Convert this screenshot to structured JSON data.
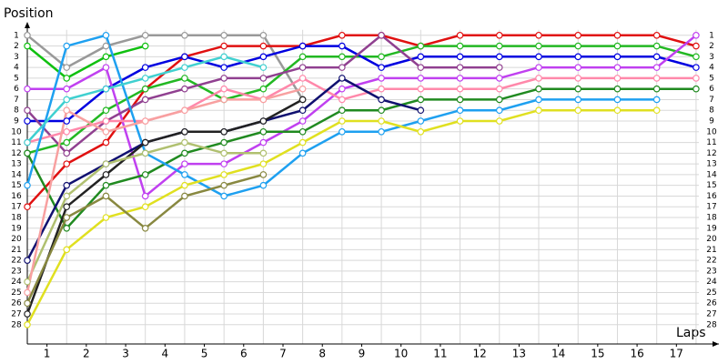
{
  "chart_data": {
    "type": "line",
    "y_label": "Position",
    "x_label": "Laps",
    "x": [
      0,
      1,
      2,
      3,
      4,
      5,
      6,
      7,
      8,
      9,
      10,
      11,
      12,
      13,
      14,
      15,
      16,
      17
    ],
    "xlim": [
      0,
      17.58
    ],
    "ylim": [
      29.8,
      0
    ],
    "xticks": [
      {
        "value": 0.5,
        "label": "1"
      },
      {
        "value": 1.5,
        "label": "2"
      },
      {
        "value": 2.5,
        "label": "3"
      },
      {
        "value": 3.5,
        "label": "4"
      },
      {
        "value": 4.5,
        "label": "5"
      },
      {
        "value": 5.5,
        "label": "6"
      },
      {
        "value": 6.5,
        "label": "7"
      },
      {
        "value": 7.5,
        "label": "8"
      },
      {
        "value": 8.5,
        "label": "9"
      },
      {
        "value": 9.5,
        "label": "10"
      },
      {
        "value": 10.5,
        "label": "11"
      },
      {
        "value": 11.5,
        "label": "12"
      },
      {
        "value": 12.5,
        "label": "13"
      },
      {
        "value": 13.5,
        "label": "14"
      },
      {
        "value": 14.5,
        "label": "15"
      },
      {
        "value": 15.5,
        "label": "16"
      },
      {
        "value": 16.5,
        "label": "17"
      }
    ],
    "yticks": [
      1,
      2,
      3,
      4,
      5,
      6,
      7,
      8,
      9,
      10,
      11,
      12,
      13,
      14,
      15,
      16,
      17,
      18,
      19,
      20,
      21,
      22,
      23,
      24,
      25,
      26,
      27,
      28
    ],
    "grid": true,
    "series": [
      {
        "color": "#999999",
        "values": [
          1,
          4,
          2,
          1,
          1,
          1,
          1,
          7,
          null,
          null,
          null,
          null,
          null,
          null,
          null,
          null,
          null,
          null
        ]
      },
      {
        "color": "#e01010",
        "values": [
          17,
          13,
          11,
          6,
          3,
          2,
          2,
          2,
          1,
          1,
          2,
          1,
          1,
          1,
          1,
          1,
          1,
          2
        ]
      },
      {
        "color": "#10c010",
        "values": [
          2,
          5,
          3,
          2,
          null,
          null,
          null,
          null,
          null,
          null,
          null,
          null,
          null,
          null,
          null,
          null,
          null,
          null
        ]
      },
      {
        "color": "#22b822",
        "values": [
          12,
          11,
          8,
          6,
          5,
          7,
          6,
          3,
          3,
          3,
          2,
          2,
          2,
          2,
          2,
          2,
          2,
          3
        ]
      },
      {
        "color": "#0000e0",
        "values": [
          9,
          9,
          6,
          4,
          3,
          4,
          3,
          2,
          2,
          4,
          3,
          3,
          3,
          3,
          3,
          3,
          3,
          4
        ]
      },
      {
        "color": "#c040f0",
        "values": [
          6,
          6,
          4,
          16,
          13,
          13,
          11,
          9,
          6,
          5,
          5,
          5,
          5,
          4,
          4,
          4,
          4,
          1
        ]
      },
      {
        "color": "#904090",
        "values": [
          8,
          12,
          9,
          7,
          6,
          5,
          5,
          4,
          4,
          1,
          4,
          4,
          4,
          null,
          null,
          null,
          null,
          null
        ]
      },
      {
        "color": "#ff88aa",
        "values": [
          11,
          10,
          9,
          9,
          8,
          6,
          7,
          5,
          7,
          6,
          6,
          6,
          6,
          5,
          5,
          5,
          5,
          5
        ]
      },
      {
        "color": "#208a20",
        "values": [
          12,
          19,
          15,
          14,
          12,
          11,
          10,
          10,
          8,
          8,
          7,
          7,
          7,
          6,
          6,
          6,
          6,
          6
        ]
      },
      {
        "color": "#1ea0f0",
        "values": [
          15,
          2,
          1,
          12,
          14,
          16,
          15,
          12,
          10,
          10,
          9,
          8,
          8,
          7,
          7,
          7,
          7,
          null
        ]
      },
      {
        "color": "#e0e020",
        "values": [
          28,
          21,
          18,
          17,
          15,
          14,
          13,
          11,
          9,
          9,
          10,
          9,
          9,
          8,
          8,
          8,
          8,
          null
        ]
      },
      {
        "color": "#40d0d0",
        "values": [
          11,
          7,
          6,
          5,
          4,
          3,
          4,
          null,
          null,
          null,
          null,
          null,
          null,
          null,
          null,
          null,
          null,
          null
        ]
      },
      {
        "color": "#101070",
        "values": [
          22,
          15,
          13,
          11,
          10,
          10,
          9,
          8,
          5,
          7,
          8,
          null,
          null,
          null,
          null,
          null,
          null,
          null
        ]
      },
      {
        "color": "#222222",
        "values": [
          27,
          17,
          14,
          11,
          10,
          10,
          9,
          7,
          null,
          null,
          null,
          null,
          null,
          null,
          null,
          null,
          null,
          null
        ]
      },
      {
        "color": "#888840",
        "values": [
          26,
          18,
          16,
          19,
          16,
          15,
          14,
          null,
          null,
          null,
          null,
          null,
          null,
          null,
          null,
          null,
          null,
          null
        ]
      },
      {
        "color": "#b0c070",
        "values": [
          24,
          16,
          13,
          12,
          11,
          12,
          12,
          null,
          null,
          null,
          null,
          null,
          null,
          null,
          null,
          null,
          null,
          null
        ]
      },
      {
        "color": "#f8a0a0",
        "values": [
          25,
          8,
          10,
          9,
          8,
          7,
          7,
          6,
          null,
          null,
          null,
          null,
          null,
          null,
          null,
          null,
          null,
          null
        ]
      }
    ]
  }
}
